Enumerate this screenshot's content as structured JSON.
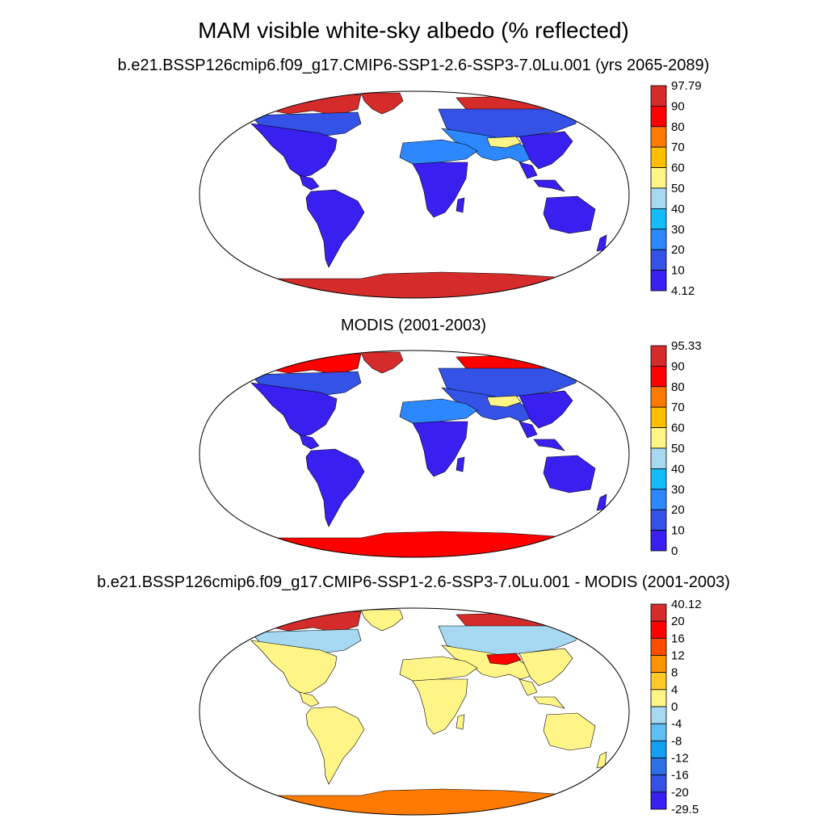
{
  "title": "MAM visible white-sky albedo (% reflected)",
  "panels": [
    {
      "subtitle": "b.e21.BSSP126cmip6.f09_g17.CMIP6-SSP1-2.6-SSP3-7.0Lu.001 (yrs 2065-2089)",
      "colorbar": {
        "labels": [
          "97.79",
          "90",
          "80",
          "70",
          "60",
          "50",
          "40",
          "30",
          "20",
          "10",
          "4.12"
        ],
        "colors": [
          "#d52b2b",
          "#ff0000",
          "#ff7a00",
          "#ffbf00",
          "#fff587",
          "#a6d8f2",
          "#14bdfa",
          "#2d88ff",
          "#3453e6",
          "#3a20f0"
        ]
      },
      "fills": {
        "default": "#3a20f0",
        "north": "#3453e6",
        "mid": "#2d88ff",
        "desert": "#2d88ff",
        "boreal": "#3453e6",
        "arctic": "#d52b2b",
        "tibet": "#fff587",
        "greenland": "#d52b2b",
        "antarctica": "#d52b2b"
      }
    },
    {
      "subtitle": "MODIS (2001-2003)",
      "colorbar": {
        "labels": [
          "95.33",
          "90",
          "80",
          "70",
          "60",
          "50",
          "40",
          "30",
          "20",
          "10",
          "0"
        ],
        "colors": [
          "#d52b2b",
          "#ff0000",
          "#ff7a00",
          "#ffbf00",
          "#fff587",
          "#a6d8f2",
          "#14bdfa",
          "#2d88ff",
          "#3453e6",
          "#3a20f0"
        ]
      },
      "fills": {
        "default": "#3a20f0",
        "north": "#3453e6",
        "mid": "#3453e6",
        "desert": "#2d88ff",
        "boreal": "#3453e6",
        "arctic": "#ff0000",
        "tibet": "#fff587",
        "greenland": "#d52b2b",
        "antarctica": "#ff0000"
      }
    },
    {
      "subtitle": "b.e21.BSSP126cmip6.f09_g17.CMIP6-SSP1-2.6-SSP3-7.0Lu.001 - MODIS (2001-2003)",
      "colorbar": {
        "labels": [
          "40.12",
          "20",
          "16",
          "12",
          "8",
          "4",
          "0",
          "-4",
          "-8",
          "-12",
          "-16",
          "-20",
          "-29.5"
        ],
        "colors": [
          "#d52b2b",
          "#ff0000",
          "#ff4d00",
          "#ff9400",
          "#ffc928",
          "#fff587",
          "#a6d8f2",
          "#5fc0f5",
          "#14a0f0",
          "#2d70e6",
          "#3453e6",
          "#3a20f0"
        ]
      },
      "fills": {
        "default": "#fff587",
        "north": "#a6d8f2",
        "mid": "#fff587",
        "desert": "#fff587",
        "boreal": "#a6d8f2",
        "arctic": "#d52b2b",
        "tibet": "#ff0000",
        "greenland": "#fff587",
        "antarctica": "#ff7a00"
      }
    }
  ]
}
